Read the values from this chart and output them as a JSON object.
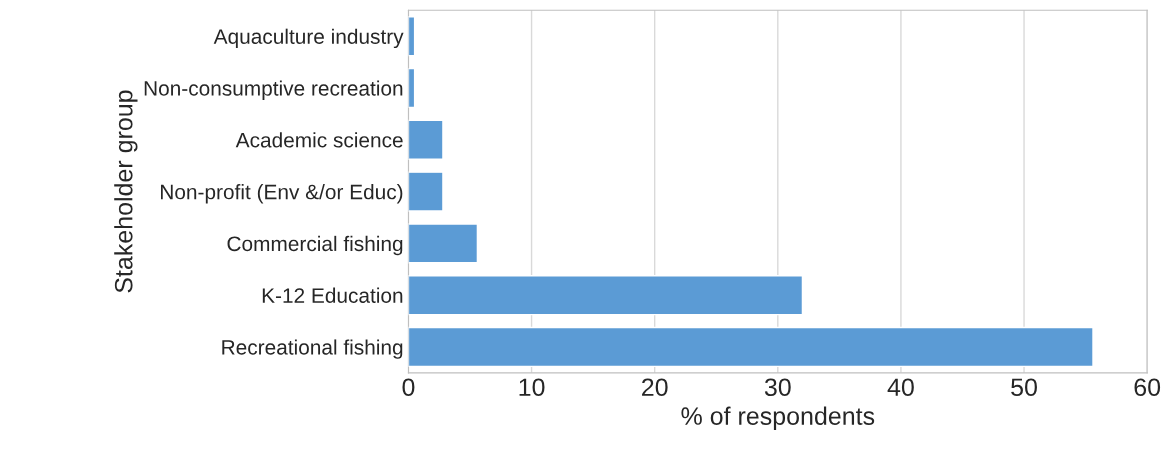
{
  "chart_data": {
    "type": "bar",
    "orientation": "horizontal",
    "xlabel": "% of respondents",
    "ylabel": "Stakeholder group",
    "categories": [
      "Aquaculture industry",
      "Non-consumptive recreation",
      "Academic science",
      "Non-profit (Env &/or Educ)",
      "Commercial fishing",
      "K-12 Education",
      "Recreational fishing"
    ],
    "values": [
      0.5,
      0.5,
      2.8,
      2.8,
      5.6,
      32.0,
      55.6
    ],
    "color": "#5b9bd5",
    "xlim": [
      0,
      60
    ],
    "xticks": [
      0,
      10,
      20,
      30,
      40,
      50,
      60
    ],
    "grid": "x",
    "legend": false
  }
}
